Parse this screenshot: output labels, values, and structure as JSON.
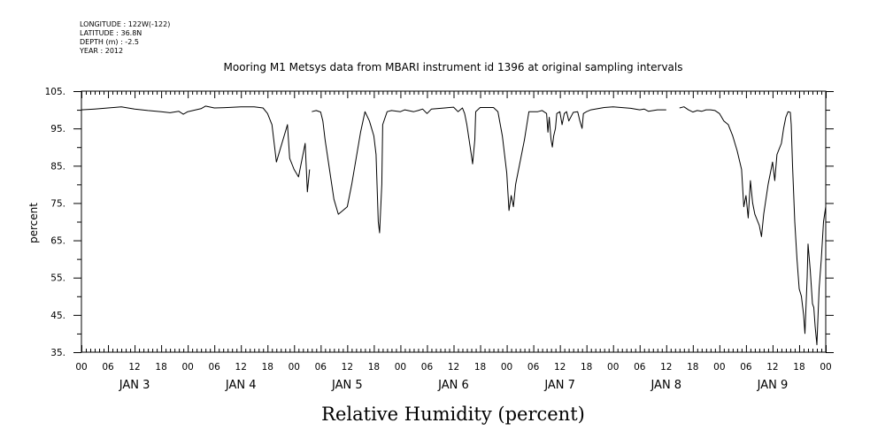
{
  "header": {
    "lines": [
      "LONGITUDE : 122W(-122)",
      "LATITUDE : 36.8N",
      "DEPTH (m) : -2.5",
      "YEAR : 2012"
    ]
  },
  "chart_data": {
    "type": "line",
    "title": "Mooring M1 Metsys data from MBARI instrument id 1396 at original sampling intervals",
    "xlabel": "Relative Humidity (percent)",
    "ylabel": "percent",
    "ylim": [
      35,
      105
    ],
    "yticks": [
      35,
      45,
      55,
      65,
      75,
      85,
      95,
      105
    ],
    "ytick_labels": [
      "35.",
      "45.",
      "55.",
      "65.",
      "75.",
      "85.",
      "95.",
      "105."
    ],
    "xlim": [
      0,
      168
    ],
    "xlim_units": "hours since JAN 3 00:00",
    "hour_ticks": [
      "00",
      "06",
      "12",
      "18"
    ],
    "day_labels": [
      "JAN 3",
      "JAN 4",
      "JAN 5",
      "JAN 6",
      "JAN 7",
      "JAN 8",
      "JAN 9"
    ],
    "grid": false,
    "series": [
      {
        "color": "#000000",
        "segments": [
          [
            [
              0,
              100
            ],
            [
              3,
              100.2
            ],
            [
              6,
              100.5
            ],
            [
              9,
              100.8
            ],
            [
              12,
              100.2
            ],
            [
              15,
              99.8
            ],
            [
              18,
              99.5
            ],
            [
              20,
              99.2
            ],
            [
              22,
              99.6
            ],
            [
              23,
              98.8
            ],
            [
              24,
              99.5
            ],
            [
              27,
              100.3
            ],
            [
              28,
              101
            ],
            [
              30,
              100.5
            ],
            [
              33,
              100.6
            ],
            [
              36,
              100.8
            ],
            [
              39,
              100.8
            ],
            [
              41,
              100.5
            ],
            [
              42,
              99
            ],
            [
              43,
              96
            ],
            [
              44,
              86
            ],
            [
              45,
              90
            ],
            [
              46,
              94
            ],
            [
              46.5,
              96
            ],
            [
              47,
              87
            ],
            [
              48,
              84
            ],
            [
              49,
              82
            ],
            [
              50,
              88
            ],
            [
              50.5,
              91
            ],
            [
              51,
              78
            ],
            [
              51.5,
              84
            ]
          ],
          [
            [
              52,
              99.5
            ],
            [
              53,
              99.8
            ],
            [
              54,
              99.4
            ],
            [
              54.5,
              97
            ],
            [
              55,
              92
            ],
            [
              56,
              84
            ],
            [
              57,
              76
            ],
            [
              58,
              72
            ],
            [
              59,
              73
            ],
            [
              60,
              74
            ],
            [
              61,
              80
            ],
            [
              62,
              87
            ],
            [
              63,
              94
            ],
            [
              64,
              99.5
            ],
            [
              65,
              97
            ],
            [
              66,
              93
            ],
            [
              66.5,
              88
            ],
            [
              67,
              70
            ],
            [
              67.3,
              67
            ],
            [
              67.8,
              80
            ],
            [
              68,
              96
            ],
            [
              69,
              99.5
            ],
            [
              70,
              99.8
            ],
            [
              72,
              99.5
            ],
            [
              73,
              100
            ],
            [
              75,
              99.5
            ],
            [
              76,
              99.8
            ],
            [
              77,
              100.2
            ],
            [
              78,
              99
            ],
            [
              79,
              100.2
            ],
            [
              82,
              100.5
            ],
            [
              84,
              100.7
            ],
            [
              85,
              99.5
            ],
            [
              86,
              100.5
            ],
            [
              86.5,
              99
            ],
            [
              87,
              96
            ],
            [
              88,
              88
            ],
            [
              88.3,
              85.5
            ],
            [
              88.8,
              92
            ],
            [
              89,
              99.5
            ],
            [
              90,
              100.6
            ],
            [
              93,
              100.6
            ],
            [
              94,
              99.5
            ],
            [
              95,
              93
            ],
            [
              96,
              83
            ],
            [
              96.5,
              73
            ],
            [
              97,
              77
            ],
            [
              97.5,
              74
            ],
            [
              98,
              80
            ],
            [
              99,
              86
            ],
            [
              100,
              92
            ],
            [
              101,
              99.5
            ],
            [
              103,
              99.5
            ],
            [
              104,
              99.8
            ],
            [
              105,
              99
            ],
            [
              105.3,
              94
            ],
            [
              105.6,
              98
            ],
            [
              106,
              92
            ],
            [
              106.3,
              90
            ],
            [
              106.6,
              93
            ],
            [
              107,
              95
            ],
            [
              107.3,
              99
            ],
            [
              108,
              99.5
            ],
            [
              108.5,
              96
            ],
            [
              109,
              99
            ],
            [
              109.5,
              99.5
            ],
            [
              110,
              97
            ],
            [
              111,
              99.3
            ],
            [
              112,
              99.5
            ],
            [
              112.5,
              97
            ],
            [
              113,
              95
            ],
            [
              113.3,
              99
            ],
            [
              114,
              99.5
            ],
            [
              115,
              100
            ],
            [
              118,
              100.6
            ],
            [
              120,
              100.8
            ],
            [
              124,
              100.4
            ],
            [
              126,
              100
            ],
            [
              127,
              100.2
            ],
            [
              128,
              99.6
            ],
            [
              130,
              100
            ],
            [
              132,
              100
            ]
          ],
          [
            [
              135,
              100.5
            ],
            [
              136,
              100.8
            ],
            [
              137,
              100
            ],
            [
              138,
              99.4
            ],
            [
              139,
              99.8
            ],
            [
              140,
              99.6
            ],
            [
              141,
              100
            ],
            [
              142,
              100
            ],
            [
              143,
              99.8
            ],
            [
              144,
              99
            ],
            [
              145,
              97
            ],
            [
              146,
              96
            ],
            [
              147,
              93
            ],
            [
              148,
              89
            ],
            [
              149,
              84
            ],
            [
              149.5,
              74
            ],
            [
              150,
              77
            ],
            [
              150.5,
              71
            ],
            [
              151,
              81
            ],
            [
              151.5,
              75
            ],
            [
              152,
              72
            ],
            [
              153,
              69
            ],
            [
              153.5,
              66
            ],
            [
              154,
              72
            ],
            [
              155,
              80
            ],
            [
              156,
              86
            ],
            [
              156.5,
              81
            ],
            [
              157,
              88
            ],
            [
              158,
              91
            ],
            [
              158.5,
              95
            ],
            [
              159,
              98
            ],
            [
              159.5,
              99.5
            ],
            [
              160,
              99.3
            ],
            [
              160.2,
              96
            ],
            [
              160.5,
              85
            ],
            [
              161,
              70
            ],
            [
              161.5,
              60
            ],
            [
              162,
              52
            ],
            [
              162.5,
              50
            ],
            [
              163,
              45
            ],
            [
              163.3,
              40
            ],
            [
              163.8,
              55
            ],
            [
              164,
              64
            ],
            [
              164.5,
              57
            ],
            [
              165,
              48
            ],
            [
              165.3,
              47
            ],
            [
              165.6,
              42
            ],
            [
              166,
              37
            ],
            [
              166.5,
              52
            ],
            [
              167,
              60
            ],
            [
              167.5,
              70
            ],
            [
              168,
              74
            ]
          ]
        ]
      }
    ]
  }
}
